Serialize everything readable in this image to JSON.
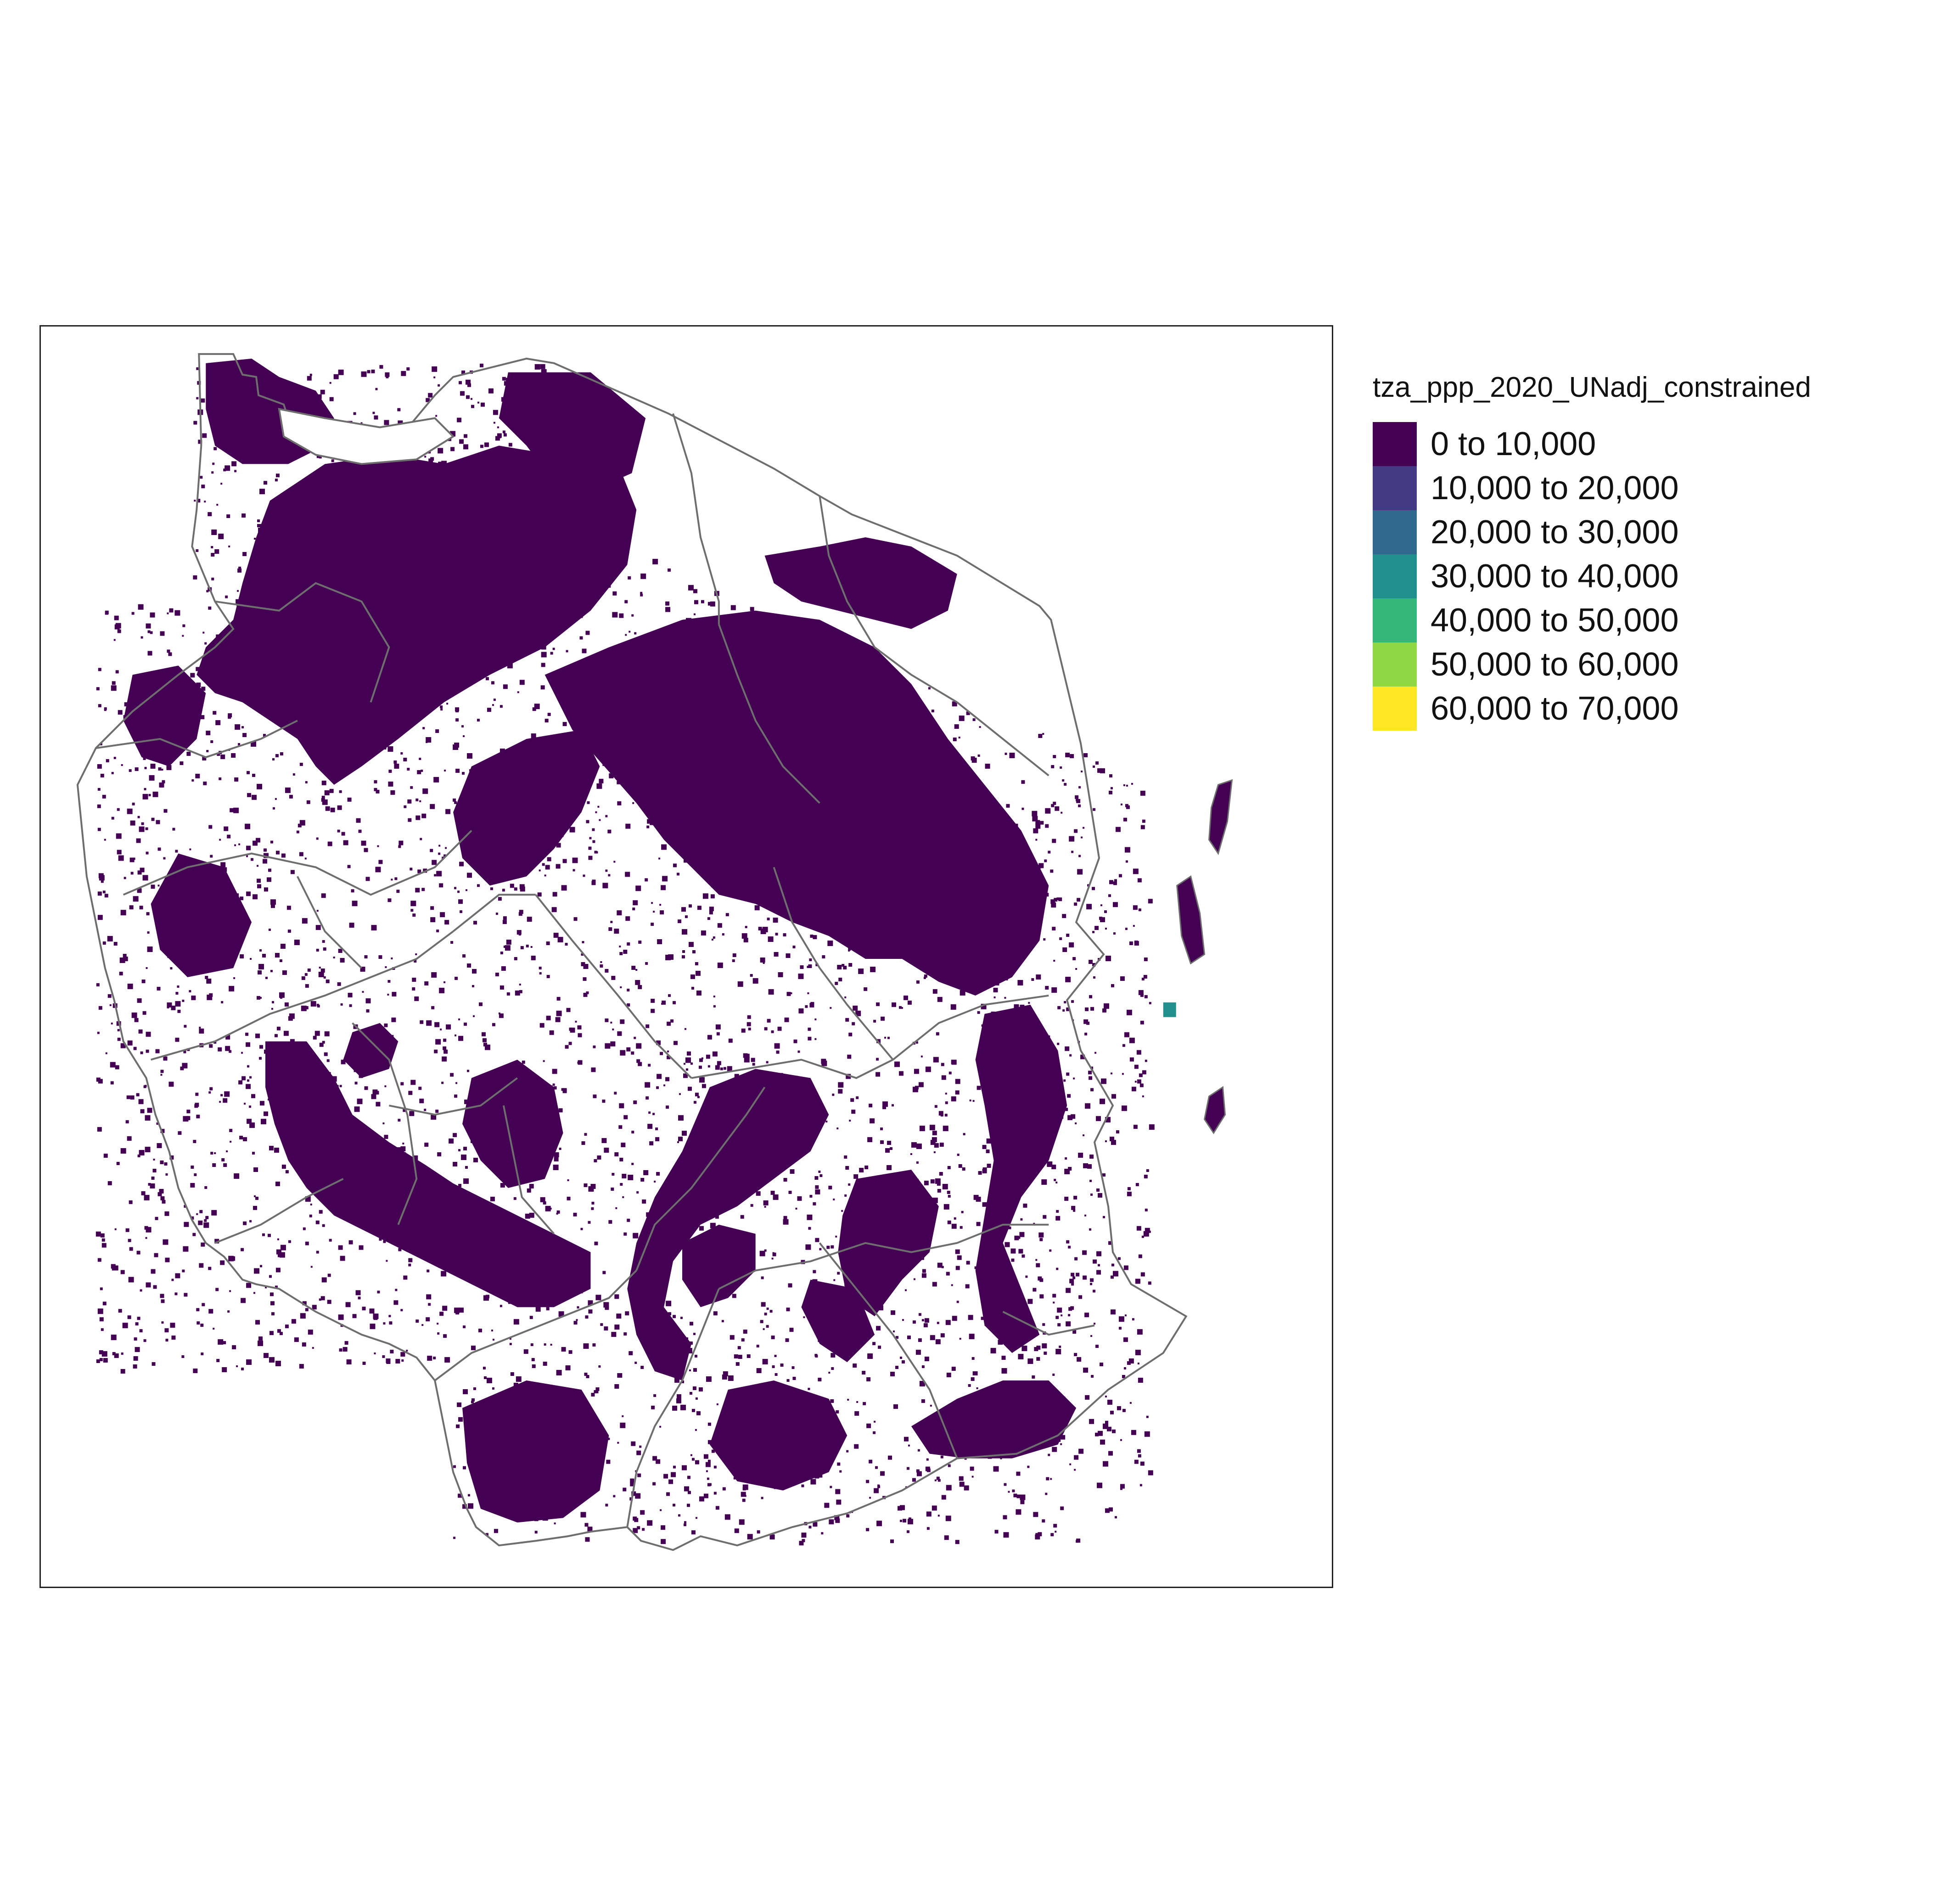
{
  "map": {
    "legend": {
      "title": "tza_ppp_2020_UNadj_constrained",
      "items": [
        {
          "label": "0 to 10,000",
          "color": "#440154"
        },
        {
          "label": "10,000 to 20,000",
          "color": "#443A83"
        },
        {
          "label": "20,000 to 30,000",
          "color": "#31688E"
        },
        {
          "label": "30,000 to 40,000",
          "color": "#21908C"
        },
        {
          "label": "40,000 to 50,000",
          "color": "#35B779"
        },
        {
          "label": "50,000 to 60,000",
          "color": "#8FD744"
        },
        {
          "label": "60,000 to 70,000",
          "color": "#FDE725"
        }
      ]
    },
    "colors": {
      "boundary": "#6E6E6E",
      "fill": "#440154",
      "hotspot": "#21908C"
    }
  }
}
